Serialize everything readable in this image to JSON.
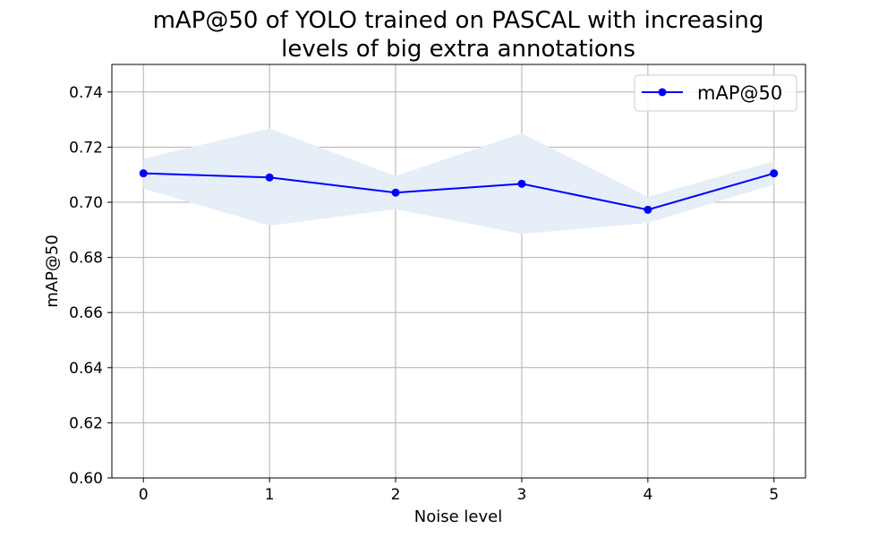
{
  "chart_data": {
    "type": "line",
    "title_lines": [
      "mAP@50 of YOLO trained on PASCAL with increasing",
      "levels of big extra annotations"
    ],
    "xlabel": "Noise level",
    "ylabel": "mAP@50",
    "x": [
      0,
      1,
      2,
      3,
      4,
      5
    ],
    "xticks": [
      "0",
      "1",
      "2",
      "3",
      "4",
      "5"
    ],
    "xlim": [
      -0.25,
      5.25
    ],
    "ylim": [
      0.6,
      0.75
    ],
    "yticks": [
      "0.60",
      "0.62",
      "0.64",
      "0.66",
      "0.68",
      "0.70",
      "0.72",
      "0.74"
    ],
    "grid": true,
    "legend": {
      "position": "top-right",
      "entries": [
        "mAP@50"
      ]
    },
    "series": [
      {
        "name": "mAP@50",
        "color": "#0000ff",
        "marker": "circle",
        "values": [
          0.7105,
          0.709,
          0.7035,
          0.7067,
          0.6973,
          0.7105
        ],
        "band_lower": [
          0.705,
          0.6915,
          0.6975,
          0.6885,
          0.6925,
          0.7065
        ],
        "band_upper": [
          0.7158,
          0.7268,
          0.7095,
          0.725,
          0.702,
          0.715
        ],
        "band_color": "#e6eef8"
      }
    ]
  }
}
